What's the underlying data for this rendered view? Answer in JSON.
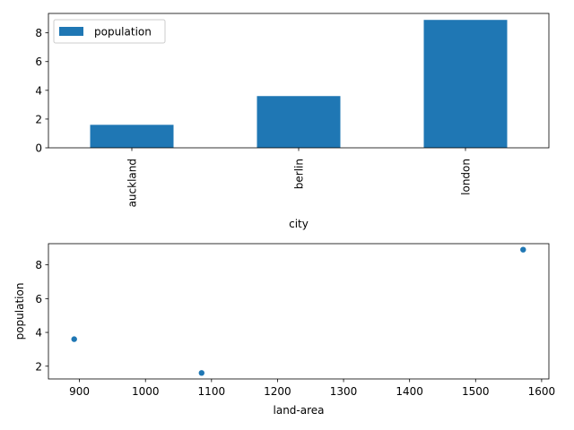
{
  "chart_data": [
    {
      "type": "bar",
      "categories": [
        "auckland",
        "berlin",
        "london"
      ],
      "series": [
        {
          "name": "population",
          "values": [
            1.6,
            3.6,
            8.9
          ]
        }
      ],
      "xlabel": "city",
      "ylabel": "",
      "ylim": [
        0,
        9.35
      ],
      "yticks": [
        0,
        2,
        4,
        6,
        8
      ],
      "legend": "upper left",
      "grid": false,
      "color": "#1f77b4"
    },
    {
      "type": "scatter",
      "x": [
        1085,
        892,
        1572
      ],
      "y": [
        1.6,
        3.6,
        8.9
      ],
      "xlabel": "land-area",
      "ylabel": "population",
      "xlim": [
        853,
        1611
      ],
      "ylim": [
        1.245,
        9.255
      ],
      "xticks": [
        900,
        1000,
        1100,
        1200,
        1300,
        1400,
        1500,
        1600
      ],
      "yticks": [
        2,
        4,
        6,
        8
      ],
      "grid": false,
      "color": "#1f77b4"
    }
  ]
}
